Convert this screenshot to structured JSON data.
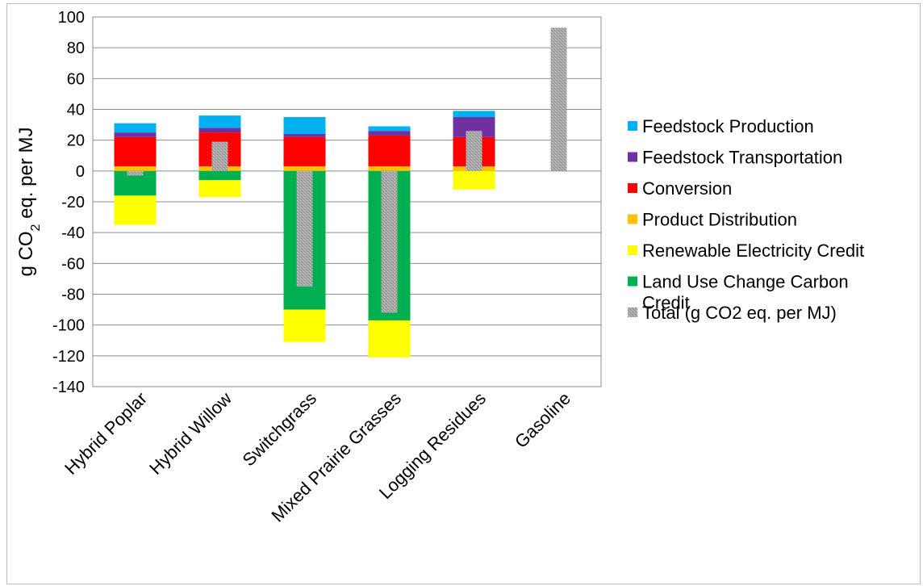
{
  "chart_data": {
    "type": "bar",
    "stacked": true,
    "categories": [
      "Hybrid Poplar",
      "Hybrid Willow",
      "Switchgrass",
      "Mixed Prairie Grasses",
      "Logging Residues",
      "Gasoline"
    ],
    "ylabel_main": "g CO",
    "ylabel_sub": "2",
    "ylabel_rest": " eq. per MJ",
    "ylim": [
      -140,
      100
    ],
    "yticks": [
      100,
      80,
      60,
      40,
      20,
      0,
      -20,
      -40,
      -60,
      -80,
      -100,
      -120,
      -140
    ],
    "grid": true,
    "legend_position": "right",
    "series": [
      {
        "name": "Feedstock Production",
        "color": "#00b0f0",
        "values": [
          6,
          8,
          11,
          3,
          4,
          0
        ]
      },
      {
        "name": "Feedstock Transportation",
        "color": "#7030a0",
        "values": [
          3,
          3,
          2,
          3,
          13,
          0
        ]
      },
      {
        "name": "Conversion",
        "color": "#ff0000",
        "values": [
          19,
          22,
          19,
          20,
          19,
          0
        ]
      },
      {
        "name": "Product Distribution",
        "color": "#ffc000",
        "values": [
          3,
          3,
          3,
          3,
          3,
          0
        ]
      },
      {
        "name": "Renewable Electricity Credit",
        "color": "#ffff00",
        "values": [
          -19,
          -11,
          -21,
          -24,
          -12,
          0
        ]
      },
      {
        "name": "Land Use Change Carbon Credit",
        "color": "#00b050",
        "values": [
          -16,
          -6,
          -90,
          -97,
          0,
          0
        ]
      }
    ],
    "total_series": {
      "name": "Total (g CO2 eq. per MJ)",
      "color": "#a6a6a6",
      "values": [
        -3,
        19,
        -75,
        -92,
        26,
        93
      ]
    }
  }
}
